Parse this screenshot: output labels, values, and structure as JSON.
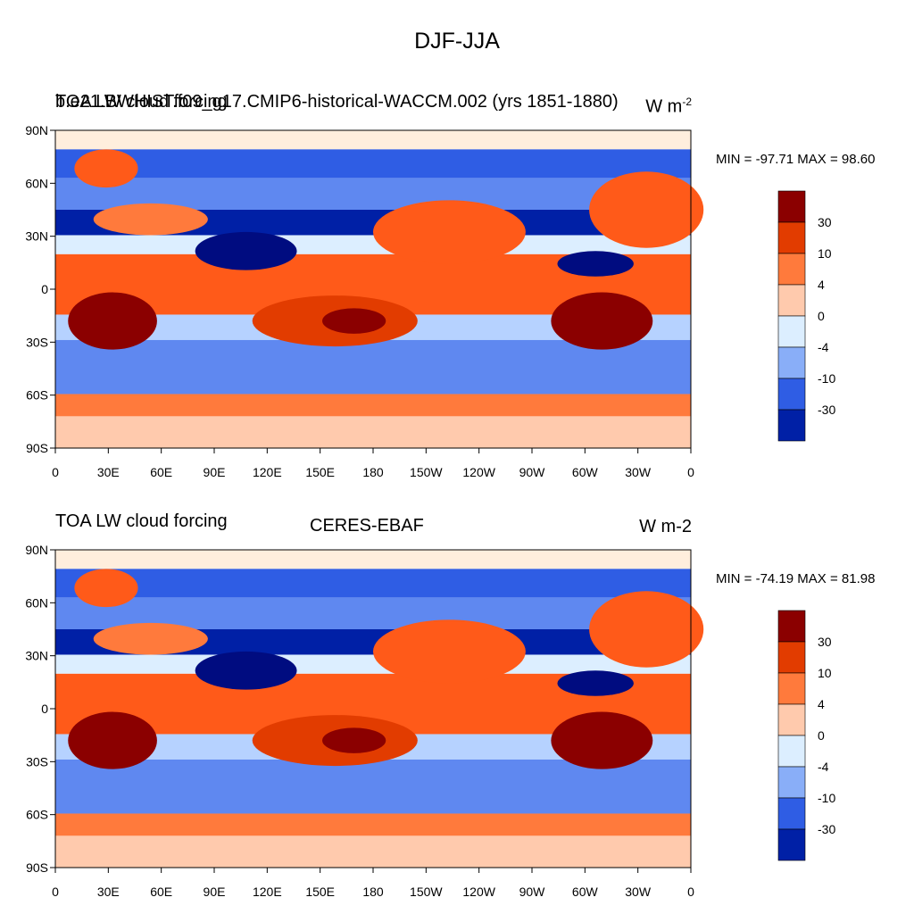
{
  "figure": {
    "title": "DJF-JJA"
  },
  "colorbar": {
    "colors": [
      "#8b0000",
      "#b81d00",
      "#e23c00",
      "#ff5a19",
      "#ff7a3c",
      "#ffa374",
      "#ffcaad",
      "#ffeedd",
      "#dceeff",
      "#b6d2ff",
      "#89aef8",
      "#5f88f0",
      "#2f5de4",
      "#0a37c8",
      "#0020a6",
      "#000c80"
    ],
    "tick_labels": [
      "30",
      "10",
      "4",
      "0",
      "-4",
      "-10",
      "-30"
    ]
  },
  "axes": {
    "y_tick_labels": [
      "90N",
      "60N",
      "30N",
      "0",
      "30S",
      "60S",
      "90S"
    ],
    "x_tick_labels": [
      "0",
      "30E",
      "60E",
      "90E",
      "120E",
      "150E",
      "180",
      "150W",
      "120W",
      "90W",
      "60W",
      "30W",
      "0"
    ]
  },
  "panels": [
    {
      "left_label": "TOA LW cloud forcing",
      "center_label": "b.e21.BWHIST.f09_g17.CMIP6-historical-WACCM.002 (yrs 1851-1880)",
      "right_label": "W m",
      "right_label_exponent": "-2",
      "min_max": "MIN = -97.71  MAX =  98.60"
    },
    {
      "left_label": "TOA LW cloud forcing",
      "center_label": "CERES-EBAF",
      "right_label": "W m-2",
      "right_label_exponent": "",
      "min_max": "MIN = -74.19  MAX =  81.98"
    }
  ],
  "chart_data": [
    {
      "type": "heatmap",
      "title": "DJF-JJA",
      "subtitle": "b.e21.BWHIST.f09_g17.CMIP6-historical-WACCM.002 (yrs 1851-1880)",
      "variable": "TOA LW cloud forcing",
      "units": "W m-2",
      "xlim": [
        0,
        360
      ],
      "ylim": [
        -90,
        90
      ],
      "x_ticks": [
        "0",
        "30E",
        "60E",
        "90E",
        "120E",
        "150E",
        "180",
        "150W",
        "120W",
        "90W",
        "60W",
        "30W",
        "0"
      ],
      "y_ticks": [
        "90N",
        "60N",
        "30N",
        "0",
        "30S",
        "60S",
        "90S"
      ],
      "contour_levels": [
        "30",
        "10",
        "4",
        "0",
        "-4",
        "-10",
        "-30"
      ],
      "min": -97.71,
      "max": 98.6
    },
    {
      "type": "heatmap",
      "title": "DJF-JJA",
      "subtitle": "CERES-EBAF",
      "variable": "TOA LW cloud forcing",
      "units": "W m-2",
      "xlim": [
        0,
        360
      ],
      "ylim": [
        -90,
        90
      ],
      "x_ticks": [
        "0",
        "30E",
        "60E",
        "90E",
        "120E",
        "150E",
        "180",
        "150W",
        "120W",
        "90W",
        "60W",
        "30W",
        "0"
      ],
      "y_ticks": [
        "90N",
        "60N",
        "30N",
        "0",
        "30S",
        "60S",
        "90S"
      ],
      "contour_levels": [
        "30",
        "10",
        "4",
        "0",
        "-4",
        "-10",
        "-30"
      ],
      "min": -74.19,
      "max": 81.98
    }
  ]
}
